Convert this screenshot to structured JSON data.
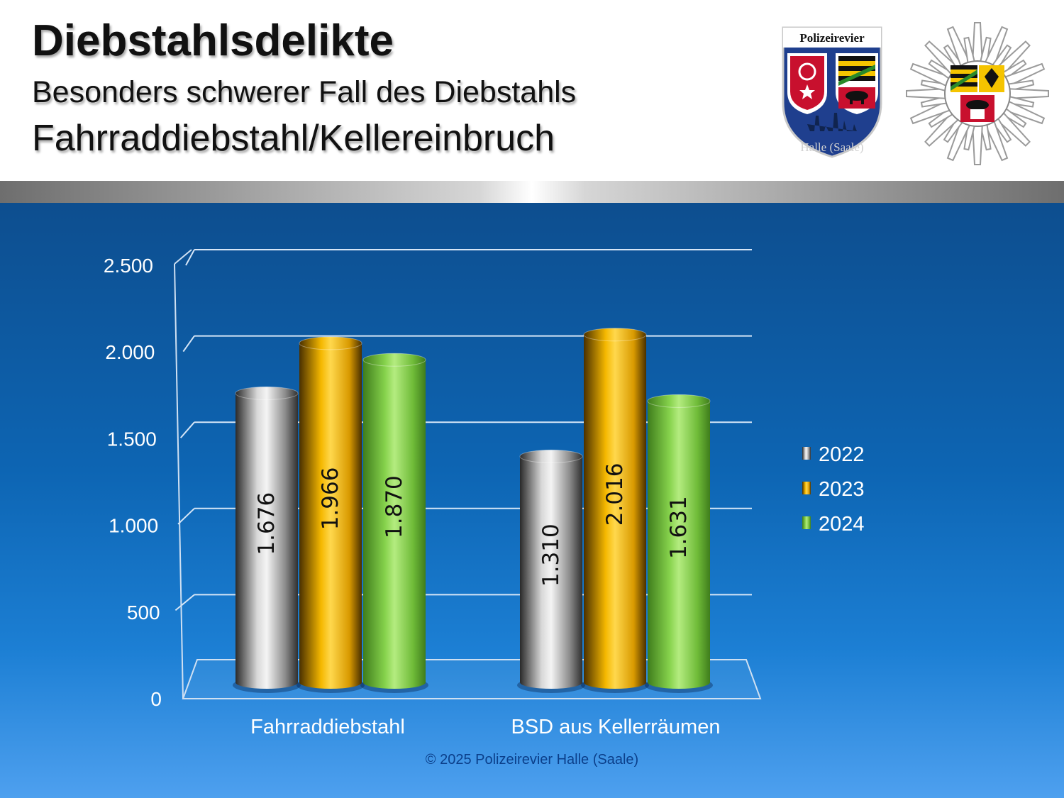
{
  "header": {
    "title": "Diebstahlsdelikte",
    "subtitle1": "Besonders schwerer Fall des Diebstahls",
    "subtitle2": "Fahrraddiebstahl/Kellereinbruch"
  },
  "logos": {
    "shield_text_top": "Polizeirevier",
    "shield_text_bottom": "Halle (Saale)"
  },
  "footer": {
    "copyright": "© 2025 Polizeirevier Halle (Saale)"
  },
  "colors": {
    "2022": "#a6a6a6",
    "2023": "#f5b800",
    "2024": "#7ed040",
    "gridline": "#d6e6f7",
    "axis_text": "#ffffff"
  },
  "chart_data": {
    "type": "bar",
    "categories": [
      "Fahrraddiebstahl",
      "BSD aus Kellerräumen"
    ],
    "series": [
      {
        "name": "2022",
        "values": [
          1676,
          1310
        ],
        "labels": [
          "1.676",
          "1.310"
        ]
      },
      {
        "name": "2023",
        "values": [
          1966,
          2016
        ],
        "labels": [
          "1.966",
          "2.016"
        ]
      },
      {
        "name": "2024",
        "values": [
          1870,
          1631
        ],
        "labels": [
          "1.870",
          "1.631"
        ]
      }
    ],
    "yticks": [
      0,
      500,
      1000,
      1500,
      2000,
      2500
    ],
    "ytick_labels": [
      "0",
      "500",
      "1.000",
      "1.500",
      "2.000",
      "2.500"
    ],
    "ylim": [
      0,
      2500
    ],
    "legend_position": "right",
    "grid": true,
    "style": "3d-cylinder"
  }
}
